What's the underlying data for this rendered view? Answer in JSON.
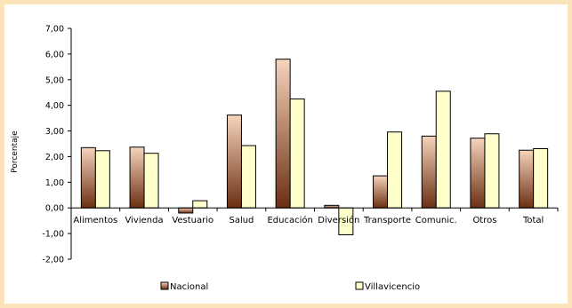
{
  "chart_data": {
    "type": "bar",
    "title": "",
    "xlabel": "",
    "ylabel": "Porcentaje",
    "ylim": [
      -2,
      7
    ],
    "ytick_step": 1,
    "ytick_labels": [
      "-2,00",
      "-1,00",
      "0,00",
      "1,00",
      "2,00",
      "3,00",
      "4,00",
      "5,00",
      "6,00",
      "7,00"
    ],
    "grid": false,
    "legend_position": "bottom",
    "categories": [
      "Alimentos",
      "Vivienda",
      "Vestuario",
      "Salud",
      "Educación",
      "Diversión",
      "Transporte",
      "Comunic.",
      "Otros",
      "Total"
    ],
    "series": [
      {
        "name": "Nacional",
        "values": [
          2.35,
          2.37,
          -0.2,
          3.62,
          5.8,
          0.1,
          1.25,
          2.8,
          2.72,
          2.25
        ],
        "color_top": "#f6d4bc",
        "color_bottom": "#6b2f12",
        "stroke": "#000000"
      },
      {
        "name": "Villavicencio",
        "values": [
          2.23,
          2.13,
          0.28,
          2.43,
          4.25,
          -1.05,
          2.96,
          4.55,
          2.89,
          2.31
        ],
        "color": "#ffffcc",
        "stroke": "#000000"
      }
    ]
  }
}
